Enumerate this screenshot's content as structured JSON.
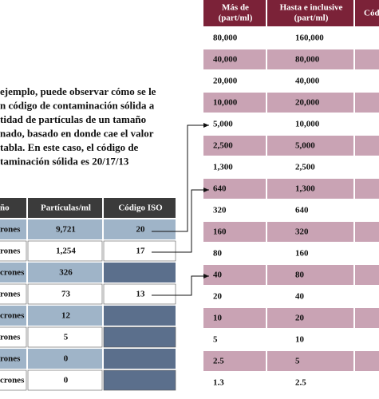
{
  "paragraph": [
    "ejemplo, puede observar cómo se le",
    "n código de contaminación sólida a",
    "tidad de partículas de un tamaño",
    "nado, basado en donde cae el valor",
    "tabla. En este caso, el código de",
    "taminación sólida es 20/17/13"
  ],
  "left_table": {
    "header": [
      "ño",
      "Partículas/ml",
      "Código ISO"
    ],
    "rows": [
      [
        "rones",
        "9,721",
        "20"
      ],
      [
        "rones",
        "1,254",
        "17"
      ],
      [
        "crones",
        "326",
        null
      ],
      [
        "rones",
        "73",
        "13"
      ],
      [
        "crones",
        "12",
        null
      ],
      [
        "rones",
        "5",
        null
      ],
      [
        "rones",
        "0",
        null
      ],
      [
        "crones",
        "0",
        null
      ]
    ]
  },
  "right_table": {
    "header": [
      [
        "Más de",
        "(part/ml)"
      ],
      [
        "Hasta e inclusive",
        "(part/ml)"
      ],
      [
        "Código"
      ]
    ],
    "rows": [
      [
        "80,000",
        "160,000"
      ],
      [
        "40,000",
        "80,000"
      ],
      [
        "20,000",
        "40,000"
      ],
      [
        "10,000",
        "20,000"
      ],
      [
        "5,000",
        "10,000"
      ],
      [
        "2,500",
        "5,000"
      ],
      [
        "1,300",
        "2,500"
      ],
      [
        "640",
        "1,300"
      ],
      [
        "320",
        "640"
      ],
      [
        "160",
        "320"
      ],
      [
        "80",
        "160"
      ],
      [
        "40",
        "80"
      ],
      [
        "20",
        "40"
      ],
      [
        "10",
        "20"
      ],
      [
        "5",
        "10"
      ],
      [
        "2.5",
        "5"
      ],
      [
        "1.3",
        "2.5"
      ]
    ]
  }
}
